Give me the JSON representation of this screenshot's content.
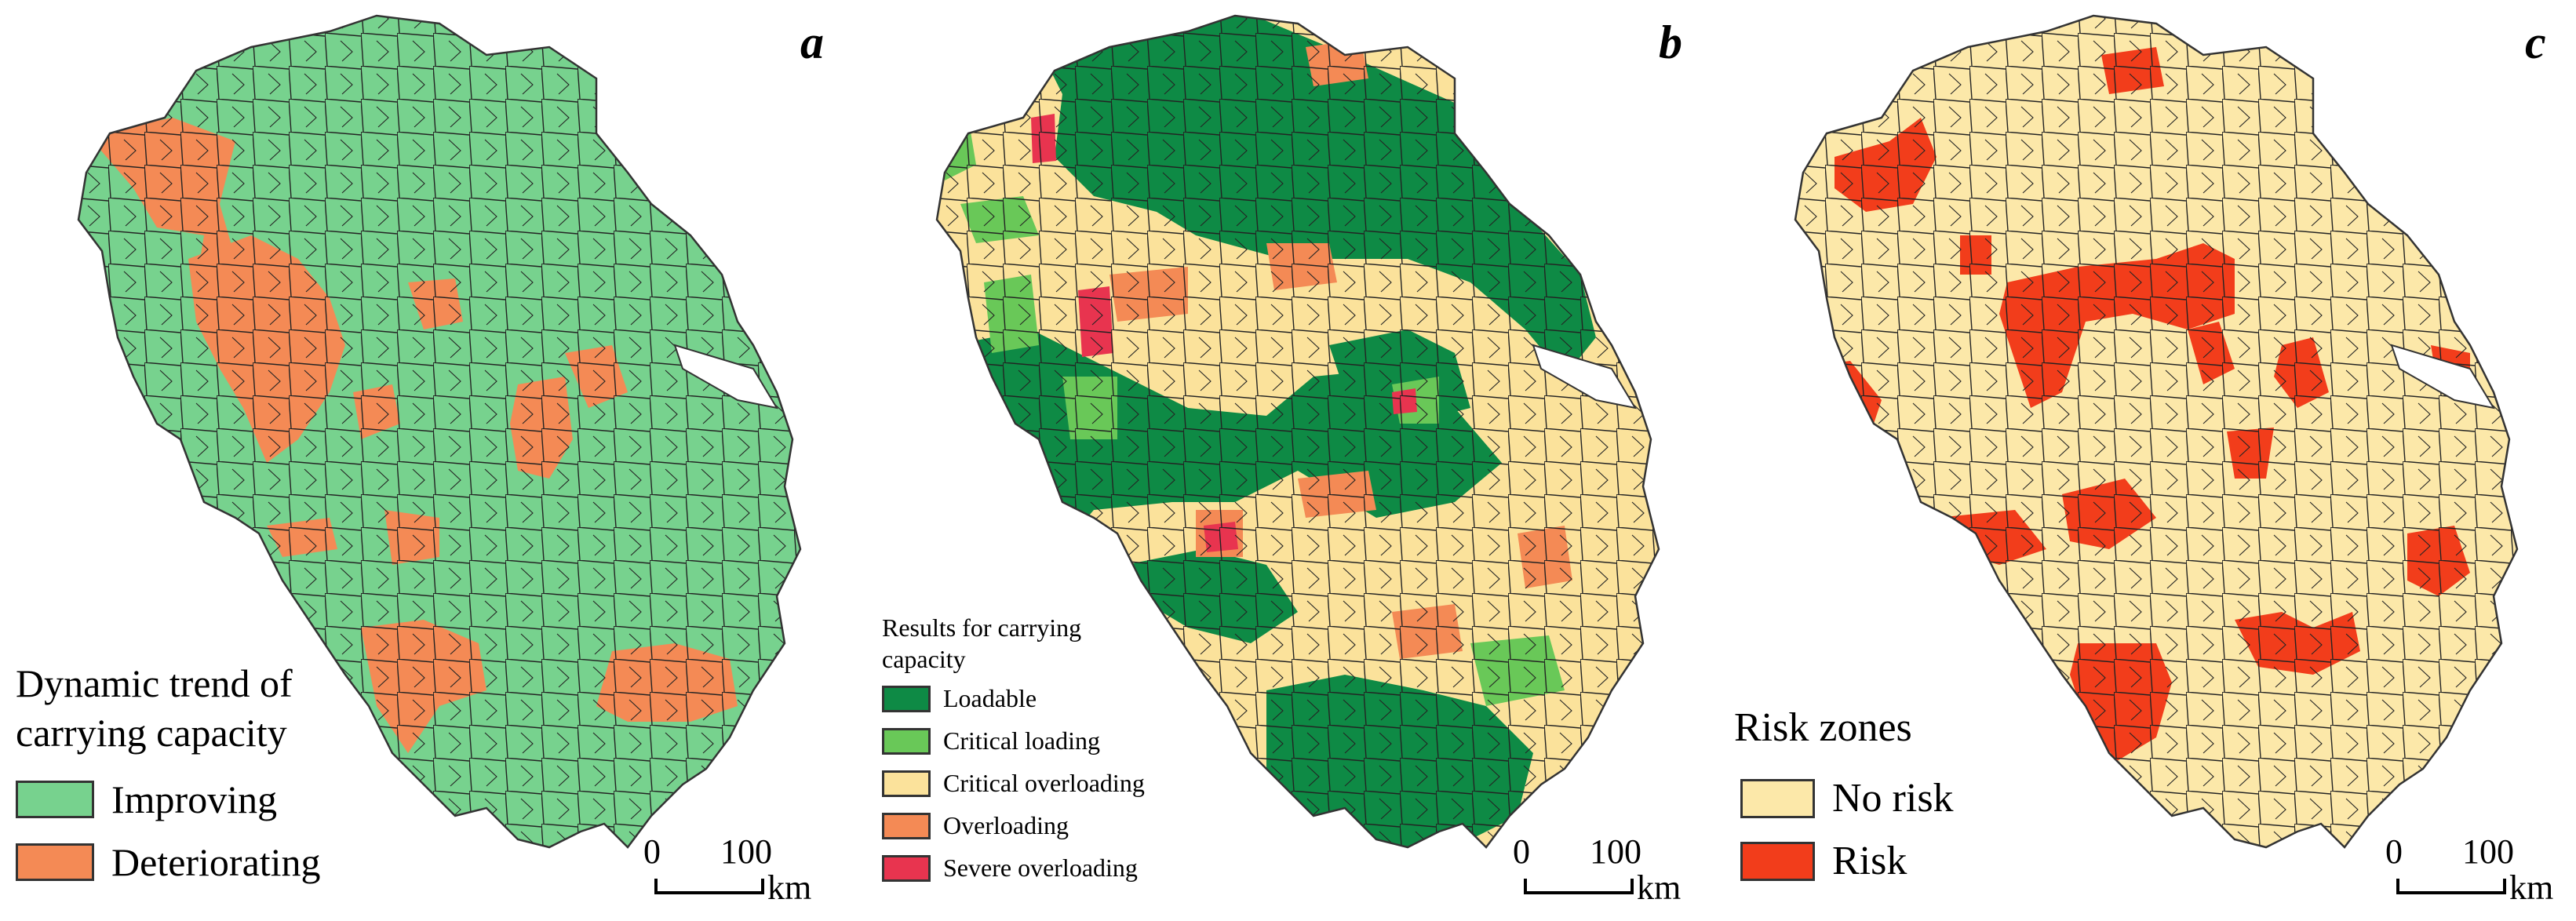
{
  "panels": [
    {
      "letter": "a",
      "legend_title": "Dynamic trend of carrying capacity",
      "legend_title_lines": [
        "Dynamic trend of",
        "carrying capacity"
      ],
      "base_color": "#77d28e",
      "legend": [
        {
          "label": "Improving",
          "color": "#77d28e"
        },
        {
          "label": "Deteriorating",
          "color": "#f48a55"
        }
      ]
    },
    {
      "letter": "b",
      "legend_title_lines": [
        "Results for carrying",
        "capacity"
      ],
      "base_color": "#fbe29b",
      "legend": [
        {
          "label": "Loadable",
          "color": "#0e8a45"
        },
        {
          "label": "Critical loading",
          "color": "#69c858"
        },
        {
          "label": "Critical overloading",
          "color": "#fbe29b"
        },
        {
          "label": "Overloading",
          "color": "#f48a55"
        },
        {
          "label": "Severe overloading",
          "color": "#e8344f"
        }
      ]
    },
    {
      "letter": "c",
      "legend_title_lines": [
        "Risk zones"
      ],
      "base_color": "#fce8a9",
      "legend": [
        {
          "label": "No risk",
          "color": "#fce8a9"
        },
        {
          "label": "Risk",
          "color": "#f23d1b"
        }
      ]
    }
  ],
  "scale_bar": {
    "start": "0",
    "end": "100",
    "unit": "km"
  },
  "colors": {
    "boundary": "#222222",
    "water": "#ffffff"
  }
}
